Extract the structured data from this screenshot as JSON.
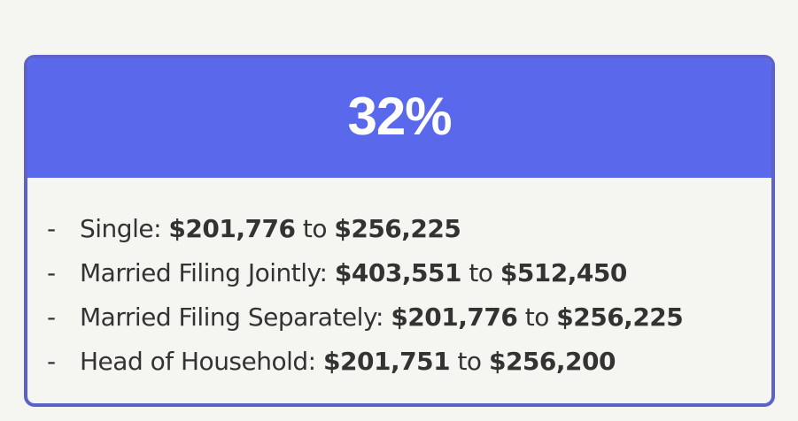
{
  "header": {
    "title": "32%"
  },
  "bullet": "-",
  "connector": "to",
  "items": [
    {
      "label": "Single:",
      "from": "$201,776",
      "to": "$256,225"
    },
    {
      "label": "Married Filing Jointly:",
      "from": "$403,551",
      "to": "$512,450"
    },
    {
      "label": "Married Filing Separately:",
      "from": "$201,776",
      "to": "$256,225"
    },
    {
      "label": "Head of Household:",
      "from": "$201,751",
      "to": "$256,200"
    }
  ]
}
